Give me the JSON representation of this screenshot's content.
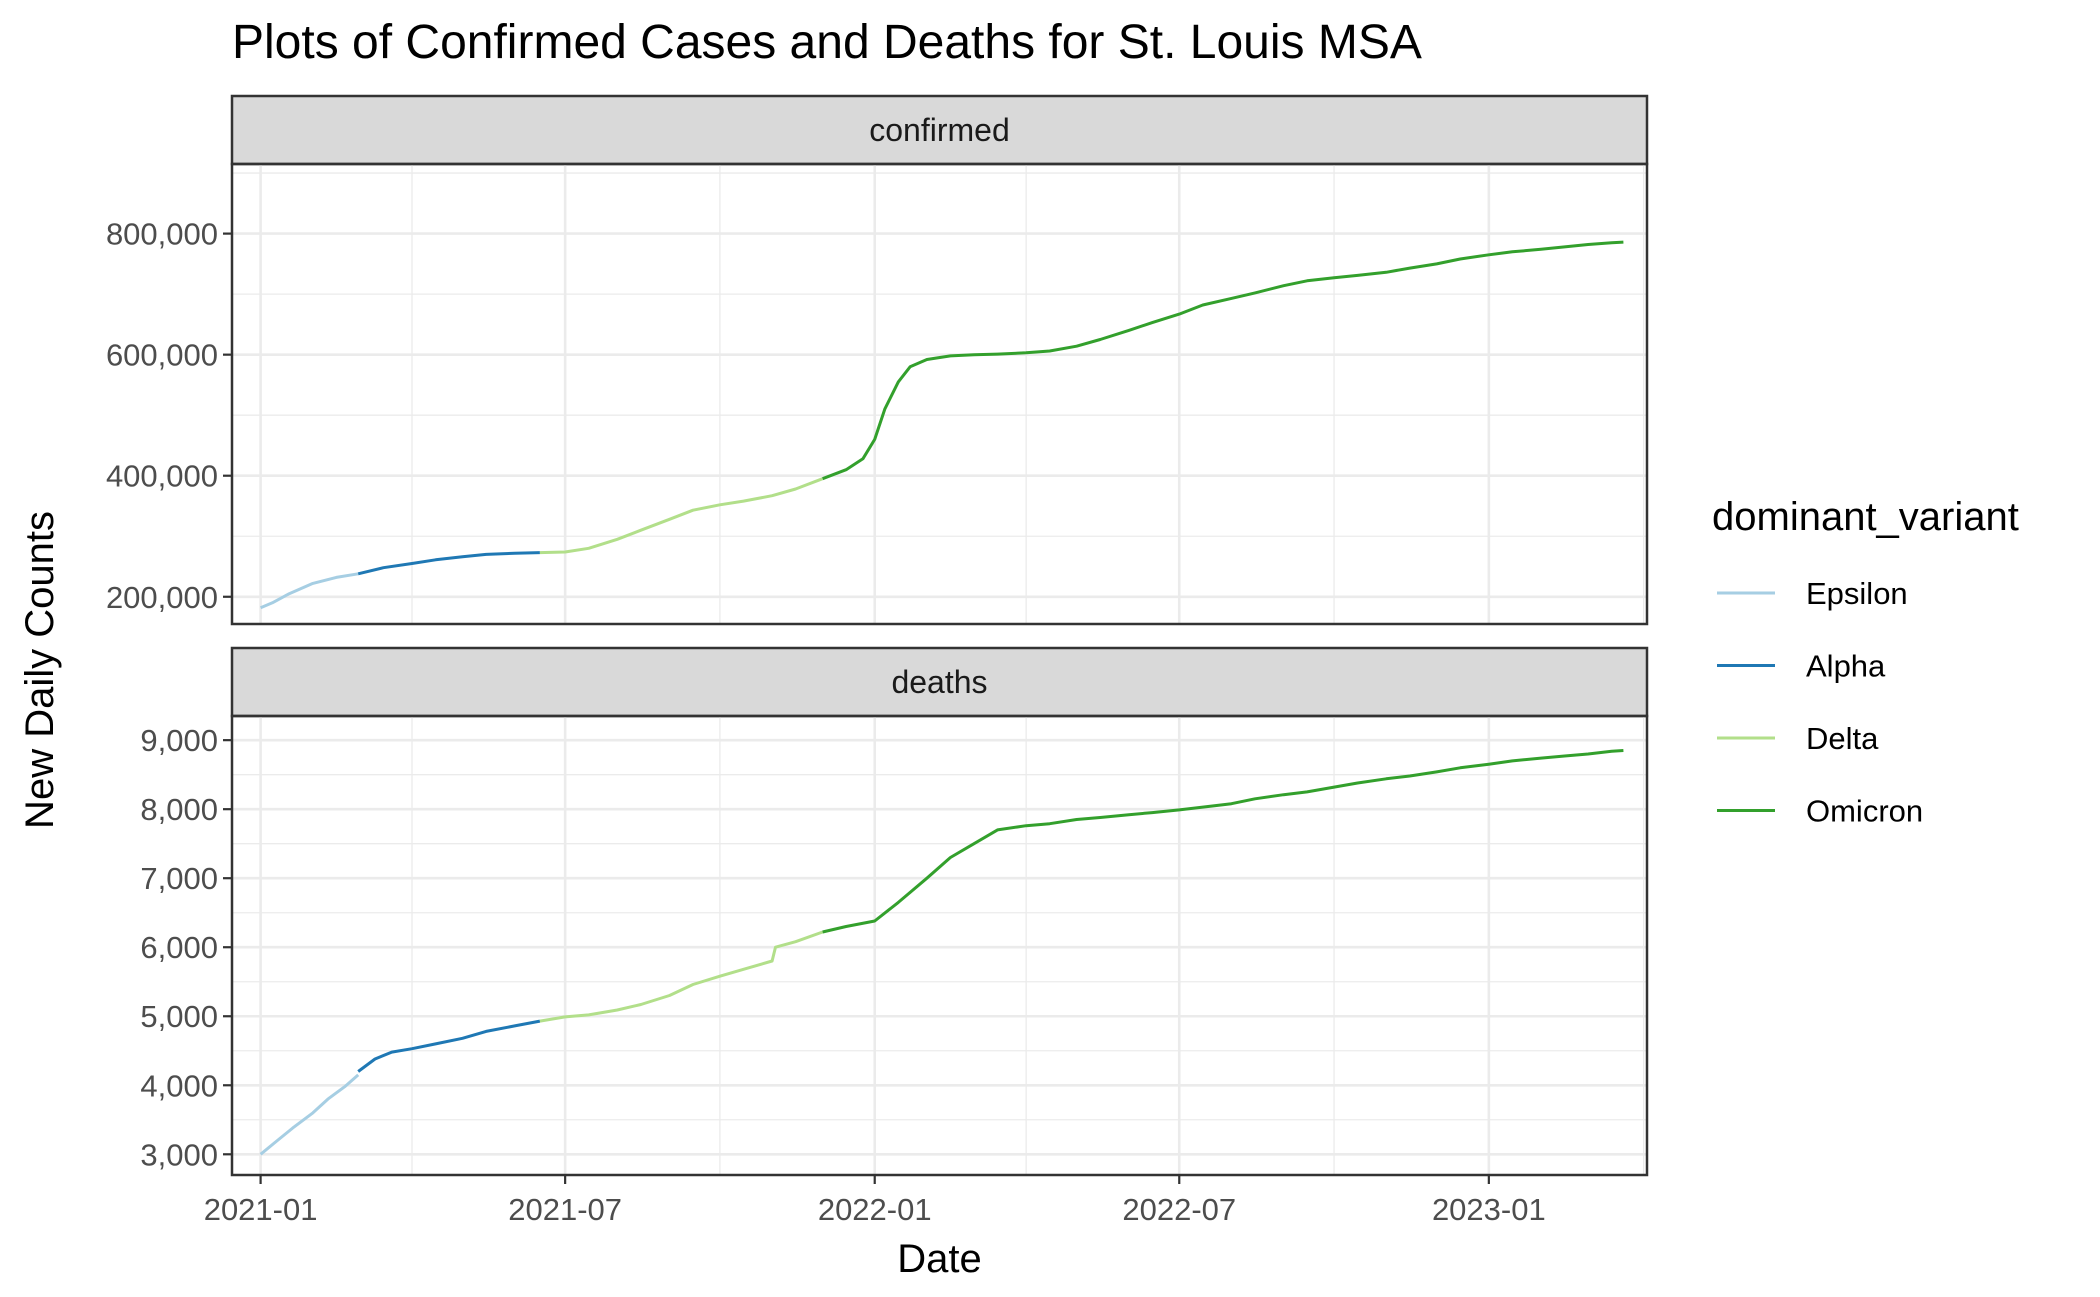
{
  "chart_data": {
    "type": "line",
    "title": "Plots of Confirmed Cases and Deaths for St. Louis MSA",
    "xlabel": "Date",
    "ylabel": "New Daily Counts",
    "x_ticks": [
      "2021-01",
      "2021-07",
      "2022-01",
      "2022-07",
      "2023-01"
    ],
    "xlim": [
      "2020-12-15",
      "2023-04-05"
    ],
    "grid": true,
    "legend": {
      "title": "dominant_variant",
      "placement": "right",
      "entries": [
        {
          "name": "Epsilon",
          "color": "#a6cee3"
        },
        {
          "name": "Alpha",
          "color": "#1f78b4"
        },
        {
          "name": "Delta",
          "color": "#b2df8a"
        },
        {
          "name": "Omicron",
          "color": "#33a02c"
        }
      ]
    },
    "facets": [
      {
        "label": "confirmed",
        "ylim": [
          155000,
          915000
        ],
        "y_ticks": [
          200000,
          400000,
          600000,
          800000
        ],
        "y_tick_labels": [
          "200,000",
          "400,000",
          "600,000",
          "800,000"
        ],
        "series": [
          {
            "name": "Epsilon",
            "points": [
              [
                "2021-01-01",
                182000
              ],
              [
                "2021-01-08",
                190000
              ],
              [
                "2021-01-18",
                205000
              ],
              [
                "2021-02-01",
                222000
              ],
              [
                "2021-02-15",
                232000
              ],
              [
                "2021-02-28",
                238000
              ]
            ]
          },
          {
            "name": "Alpha",
            "points": [
              [
                "2021-02-28",
                238000
              ],
              [
                "2021-03-15",
                248000
              ],
              [
                "2021-04-01",
                255000
              ],
              [
                "2021-04-15",
                261000
              ],
              [
                "2021-05-01",
                266000
              ],
              [
                "2021-05-15",
                270000
              ],
              [
                "2021-06-01",
                272000
              ],
              [
                "2021-06-16",
                273000
              ]
            ]
          },
          {
            "name": "Delta",
            "points": [
              [
                "2021-06-16",
                273000
              ],
              [
                "2021-07-01",
                274000
              ],
              [
                "2021-07-15",
                280000
              ],
              [
                "2021-08-01",
                295000
              ],
              [
                "2021-08-15",
                310000
              ],
              [
                "2021-09-01",
                328000
              ],
              [
                "2021-09-15",
                343000
              ],
              [
                "2021-10-01",
                352000
              ],
              [
                "2021-10-15",
                358000
              ],
              [
                "2021-11-01",
                367000
              ],
              [
                "2021-11-15",
                378000
              ],
              [
                "2021-12-01",
                395000
              ]
            ]
          },
          {
            "name": "Omicron",
            "points": [
              [
                "2021-12-01",
                395000
              ],
              [
                "2021-12-15",
                410000
              ],
              [
                "2021-12-25",
                428000
              ],
              [
                "2022-01-01",
                460000
              ],
              [
                "2022-01-07",
                510000
              ],
              [
                "2022-01-15",
                555000
              ],
              [
                "2022-01-22",
                580000
              ],
              [
                "2022-02-01",
                592000
              ],
              [
                "2022-02-15",
                598000
              ],
              [
                "2022-03-01",
                600000
              ],
              [
                "2022-03-15",
                601000
              ],
              [
                "2022-04-01",
                603000
              ],
              [
                "2022-04-15",
                606000
              ],
              [
                "2022-05-01",
                614000
              ],
              [
                "2022-05-15",
                625000
              ],
              [
                "2022-06-01",
                640000
              ],
              [
                "2022-06-15",
                653000
              ],
              [
                "2022-07-01",
                667000
              ],
              [
                "2022-07-15",
                682000
              ],
              [
                "2022-08-01",
                693000
              ],
              [
                "2022-08-15",
                702000
              ],
              [
                "2022-09-01",
                714000
              ],
              [
                "2022-09-15",
                722000
              ],
              [
                "2022-10-01",
                727000
              ],
              [
                "2022-10-15",
                731000
              ],
              [
                "2022-11-01",
                736000
              ],
              [
                "2022-11-15",
                743000
              ],
              [
                "2022-12-01",
                750000
              ],
              [
                "2022-12-15",
                758000
              ],
              [
                "2023-01-01",
                765000
              ],
              [
                "2023-01-15",
                770000
              ],
              [
                "2023-02-01",
                774000
              ],
              [
                "2023-02-15",
                778000
              ],
              [
                "2023-03-01",
                782000
              ],
              [
                "2023-03-15",
                785000
              ],
              [
                "2023-03-22",
                786000
              ]
            ]
          }
        ]
      },
      {
        "label": "deaths",
        "ylim": [
          2700,
          9350
        ],
        "y_ticks": [
          3000,
          4000,
          5000,
          6000,
          7000,
          8000,
          9000
        ],
        "y_tick_labels": [
          "3,000",
          "4,000",
          "5,000",
          "6,000",
          "7,000",
          "8,000",
          "9,000"
        ],
        "series": [
          {
            "name": "Epsilon",
            "points": [
              [
                "2021-01-01",
                3000
              ],
              [
                "2021-01-10",
                3180
              ],
              [
                "2021-01-20",
                3380
              ],
              [
                "2021-02-01",
                3600
              ],
              [
                "2021-02-10",
                3800
              ],
              [
                "2021-02-20",
                3980
              ],
              [
                "2021-02-28",
                4150
              ]
            ]
          },
          {
            "name": "Alpha",
            "points": [
              [
                "2021-02-28",
                4200
              ],
              [
                "2021-03-10",
                4380
              ],
              [
                "2021-03-20",
                4480
              ],
              [
                "2021-04-01",
                4530
              ],
              [
                "2021-04-15",
                4600
              ],
              [
                "2021-05-01",
                4680
              ],
              [
                "2021-05-15",
                4780
              ],
              [
                "2021-06-01",
                4860
              ],
              [
                "2021-06-16",
                4930
              ]
            ]
          },
          {
            "name": "Delta",
            "points": [
              [
                "2021-06-16",
                4930
              ],
              [
                "2021-07-01",
                4990
              ],
              [
                "2021-07-15",
                5020
              ],
              [
                "2021-08-01",
                5090
              ],
              [
                "2021-08-15",
                5170
              ],
              [
                "2021-09-01",
                5300
              ],
              [
                "2021-09-15",
                5460
              ],
              [
                "2021-10-01",
                5580
              ],
              [
                "2021-10-15",
                5680
              ],
              [
                "2021-11-01",
                5800
              ],
              [
                "2021-11-03",
                6000
              ],
              [
                "2021-11-15",
                6080
              ],
              [
                "2021-12-01",
                6220
              ]
            ]
          },
          {
            "name": "Omicron",
            "points": [
              [
                "2021-12-01",
                6220
              ],
              [
                "2021-12-15",
                6300
              ],
              [
                "2022-01-01",
                6380
              ],
              [
                "2022-01-15",
                6650
              ],
              [
                "2022-02-01",
                7000
              ],
              [
                "2022-02-15",
                7300
              ],
              [
                "2022-03-01",
                7500
              ],
              [
                "2022-03-15",
                7700
              ],
              [
                "2022-04-01",
                7760
              ],
              [
                "2022-04-15",
                7790
              ],
              [
                "2022-05-01",
                7850
              ],
              [
                "2022-05-15",
                7880
              ],
              [
                "2022-06-01",
                7920
              ],
              [
                "2022-06-15",
                7950
              ],
              [
                "2022-07-01",
                7990
              ],
              [
                "2022-07-15",
                8030
              ],
              [
                "2022-08-01",
                8080
              ],
              [
                "2022-08-15",
                8150
              ],
              [
                "2022-09-01",
                8210
              ],
              [
                "2022-09-15",
                8250
              ],
              [
                "2022-10-01",
                8320
              ],
              [
                "2022-10-15",
                8380
              ],
              [
                "2022-11-01",
                8440
              ],
              [
                "2022-11-15",
                8480
              ],
              [
                "2022-12-01",
                8540
              ],
              [
                "2022-12-15",
                8600
              ],
              [
                "2023-01-01",
                8650
              ],
              [
                "2023-01-15",
                8700
              ],
              [
                "2023-02-01",
                8740
              ],
              [
                "2023-02-15",
                8770
              ],
              [
                "2023-03-01",
                8800
              ],
              [
                "2023-03-15",
                8840
              ],
              [
                "2023-03-22",
                8850
              ]
            ]
          }
        ]
      }
    ]
  }
}
